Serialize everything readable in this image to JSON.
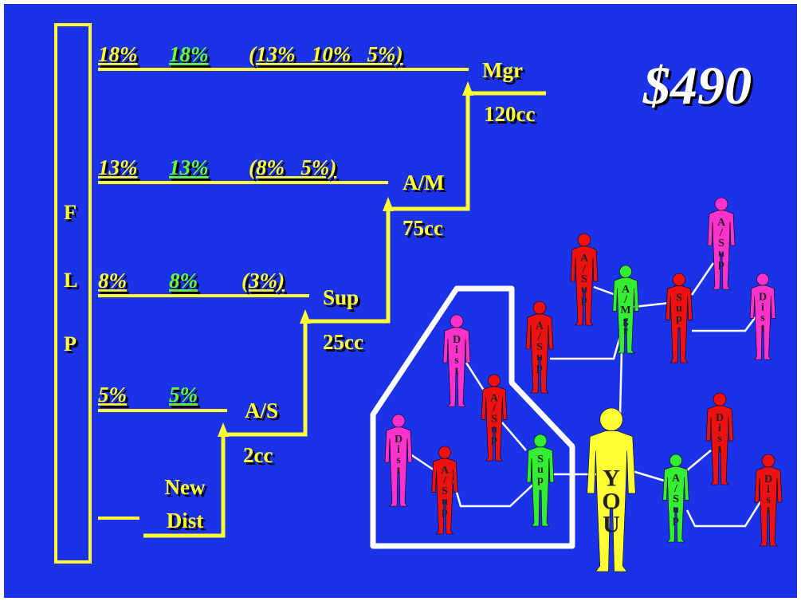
{
  "flp": [
    "F",
    "L",
    "P"
  ],
  "levels": [
    {
      "left": "18%",
      "right": "18%",
      "override": "(13%   10%   5%)",
      "rank": "Mgr",
      "volume": "120cc"
    },
    {
      "left": "13%",
      "right": "13%",
      "override": "(8%   5%)",
      "rank": "A/M",
      "volume": "75cc"
    },
    {
      "left": "8%",
      "right": "8%",
      "override": "(3%)",
      "rank": "Sup",
      "volume": "25cc"
    },
    {
      "left": "5%",
      "right": "5%",
      "rank": "A/S",
      "volume": "2cc"
    }
  ],
  "new_dist": [
    "New",
    "Dist"
  ],
  "price": "$490",
  "people": [
    {
      "label": "Dist"
    },
    {
      "label": "A/Sup"
    },
    {
      "label": "Dist"
    },
    {
      "label": "A/Sup"
    },
    {
      "label": "Sup"
    },
    {
      "label": "YOU"
    },
    {
      "label": "A/Sup"
    },
    {
      "label": "A/Sup"
    },
    {
      "label": "A/Mgr"
    },
    {
      "label": "Sup"
    },
    {
      "label": "A/Sup"
    },
    {
      "label": "Dist"
    },
    {
      "label": "A/Sup"
    },
    {
      "label": "Dist"
    },
    {
      "label": "Dist"
    }
  ]
}
